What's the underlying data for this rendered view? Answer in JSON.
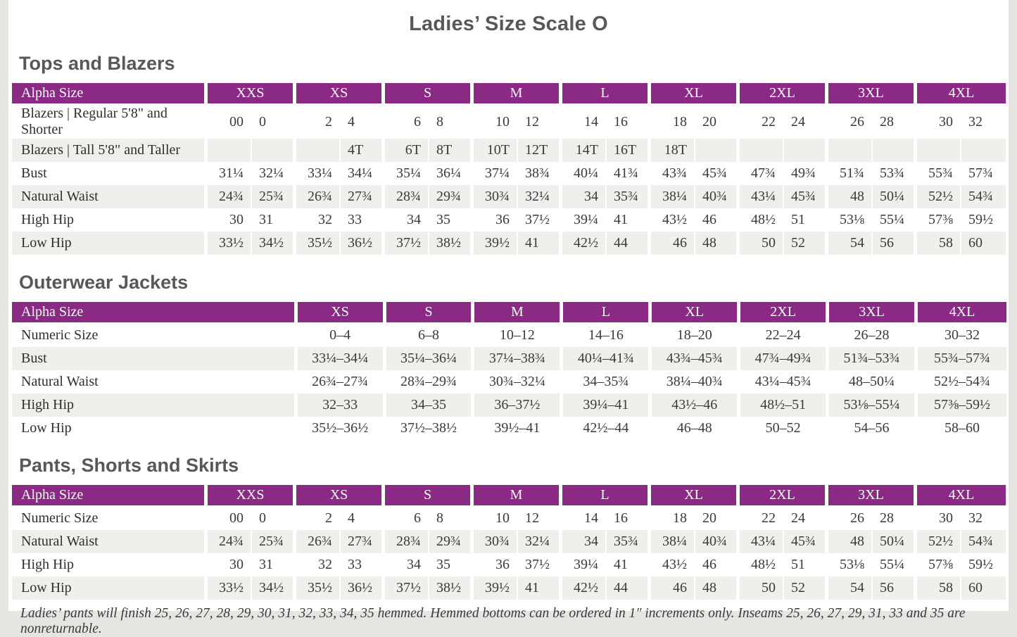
{
  "page": {
    "title": "Ladies’ Size Scale O"
  },
  "colors": {
    "accent_purple": "#8a2a84",
    "row_stripe": "#f1efec",
    "heading_text": "#57585a",
    "body_text": "#3a3a3a"
  },
  "sections": [
    {
      "heading": "Tops and Blazers",
      "table": {
        "corner_label": "Alpha Size",
        "split_columns": true,
        "columns": [
          "XXS",
          "XS",
          "S",
          "M",
          "L",
          "XL",
          "2XL",
          "3XL",
          "4XL"
        ],
        "rows": [
          {
            "label": "Blazers  |  Regular 5'8\" and Shorter",
            "cells": [
              [
                "00",
                "0"
              ],
              [
                "2",
                "4"
              ],
              [
                "6",
                "8"
              ],
              [
                "10",
                "12"
              ],
              [
                "14",
                "16"
              ],
              [
                "18",
                "20"
              ],
              [
                "22",
                "24"
              ],
              [
                "26",
                "28"
              ],
              [
                "30",
                "32"
              ]
            ]
          },
          {
            "label": "Blazers  |  Tall 5'8\" and Taller",
            "cells": [
              [
                "",
                ""
              ],
              [
                "",
                "4T"
              ],
              [
                "6T",
                "8T"
              ],
              [
                "10T",
                "12T"
              ],
              [
                "14T",
                "16T"
              ],
              [
                "18T",
                ""
              ],
              [
                "",
                ""
              ],
              [
                "",
                ""
              ],
              [
                "",
                ""
              ]
            ]
          },
          {
            "label": "Bust",
            "cells": [
              [
                "31¼",
                "32¼"
              ],
              [
                "33¼",
                "34¼"
              ],
              [
                "35¼",
                "36¼"
              ],
              [
                "37¼",
                "38¾"
              ],
              [
                "40¼",
                "41¾"
              ],
              [
                "43¾",
                "45¾"
              ],
              [
                "47¾",
                "49¾"
              ],
              [
                "51¾",
                "53¾"
              ],
              [
                "55¾",
                "57¾"
              ]
            ]
          },
          {
            "label": "Natural Waist",
            "cells": [
              [
                "24¾",
                "25¾"
              ],
              [
                "26¾",
                "27¾"
              ],
              [
                "28¾",
                "29¾"
              ],
              [
                "30¾",
                "32¼"
              ],
              [
                "34",
                "35¾"
              ],
              [
                "38¼",
                "40¾"
              ],
              [
                "43¼",
                "45¾"
              ],
              [
                "48",
                "50¼"
              ],
              [
                "52½",
                "54¾"
              ]
            ]
          },
          {
            "label": "High Hip",
            "cells": [
              [
                "30",
                "31"
              ],
              [
                "32",
                "33"
              ],
              [
                "34",
                "35"
              ],
              [
                "36",
                "37½"
              ],
              [
                "39¼",
                "41"
              ],
              [
                "43½",
                "46"
              ],
              [
                "48½",
                "51"
              ],
              [
                "53⅛",
                "55¼"
              ],
              [
                "57⅜",
                "59½"
              ]
            ]
          },
          {
            "label": "Low Hip",
            "cells": [
              [
                "33½",
                "34½"
              ],
              [
                "35½",
                "36½"
              ],
              [
                "37½",
                "38½"
              ],
              [
                "39½",
                "41"
              ],
              [
                "42½",
                "44"
              ],
              [
                "46",
                "48"
              ],
              [
                "50",
                "52"
              ],
              [
                "54",
                "56"
              ],
              [
                "58",
                "60"
              ]
            ]
          }
        ]
      }
    },
    {
      "heading": "Outerwear Jackets",
      "table": {
        "corner_label": "Alpha Size",
        "split_columns": false,
        "columns": [
          "XS",
          "S",
          "M",
          "L",
          "XL",
          "2XL",
          "3XL",
          "4XL"
        ],
        "rows": [
          {
            "label": "Numeric Size",
            "cells": [
              "0–4",
              "6–8",
              "10–12",
              "14–16",
              "18–20",
              "22–24",
              "26–28",
              "30–32"
            ]
          },
          {
            "label": "Bust",
            "cells": [
              "33¼–34¼",
              "35¼–36¼",
              "37¼–38¾",
              "40¼–41¾",
              "43¾–45¾",
              "47¾–49¾",
              "51¾–53¾",
              "55¾–57¾"
            ]
          },
          {
            "label": "Natural Waist",
            "cells": [
              "26¾–27¾",
              "28¾–29¾",
              "30¾–32¼",
              "34–35¾",
              "38¼–40¾",
              "43¼–45¾",
              "48–50¼",
              "52½–54¾"
            ]
          },
          {
            "label": "High Hip",
            "cells": [
              "32–33",
              "34–35",
              "36–37½",
              "39¼–41",
              "43½–46",
              "48½–51",
              "53⅛–55¼",
              "57⅜–59½"
            ]
          },
          {
            "label": "Low Hip",
            "cells": [
              "35½–36½",
              "37½–38½",
              "39½–41",
              "42½–44",
              "46–48",
              "50–52",
              "54–56",
              "58–60"
            ]
          }
        ]
      }
    },
    {
      "heading": "Pants, Shorts and Skirts",
      "table": {
        "corner_label": "Alpha Size",
        "split_columns": true,
        "columns": [
          "XXS",
          "XS",
          "S",
          "M",
          "L",
          "XL",
          "2XL",
          "3XL",
          "4XL"
        ],
        "rows": [
          {
            "label": "Numeric Size",
            "cells": [
              [
                "00",
                "0"
              ],
              [
                "2",
                "4"
              ],
              [
                "6",
                "8"
              ],
              [
                "10",
                "12"
              ],
              [
                "14",
                "16"
              ],
              [
                "18",
                "20"
              ],
              [
                "22",
                "24"
              ],
              [
                "26",
                "28"
              ],
              [
                "30",
                "32"
              ]
            ]
          },
          {
            "label": "Natural Waist",
            "cells": [
              [
                "24¾",
                "25¾"
              ],
              [
                "26¾",
                "27¾"
              ],
              [
                "28¾",
                "29¾"
              ],
              [
                "30¾",
                "32¼"
              ],
              [
                "34",
                "35¾"
              ],
              [
                "38¼",
                "40¾"
              ],
              [
                "43¼",
                "45¾"
              ],
              [
                "48",
                "50¼"
              ],
              [
                "52½",
                "54¾"
              ]
            ]
          },
          {
            "label": "High Hip",
            "cells": [
              [
                "30",
                "31"
              ],
              [
                "32",
                "33"
              ],
              [
                "34",
                "35"
              ],
              [
                "36",
                "37½"
              ],
              [
                "39¼",
                "41"
              ],
              [
                "43½",
                "46"
              ],
              [
                "48½",
                "51"
              ],
              [
                "53⅛",
                "55¼"
              ],
              [
                "57⅜",
                "59½"
              ]
            ]
          },
          {
            "label": "Low Hip",
            "cells": [
              [
                "33½",
                "34½"
              ],
              [
                "35½",
                "36½"
              ],
              [
                "37½",
                "38½"
              ],
              [
                "39½",
                "41"
              ],
              [
                "42½",
                "44"
              ],
              [
                "46",
                "48"
              ],
              [
                "50",
                "52"
              ],
              [
                "54",
                "56"
              ],
              [
                "58",
                "60"
              ]
            ]
          }
        ]
      }
    }
  ],
  "footnote": "Ladies’ pants will finish 25, 26, 27, 28, 29, 30, 31, 32, 33, 34, 35 hemmed. Hemmed bottoms can be ordered in 1″ increments only. Inseams 25, 26, 27, 29, 31, 33 and 35 are nonreturnable."
}
